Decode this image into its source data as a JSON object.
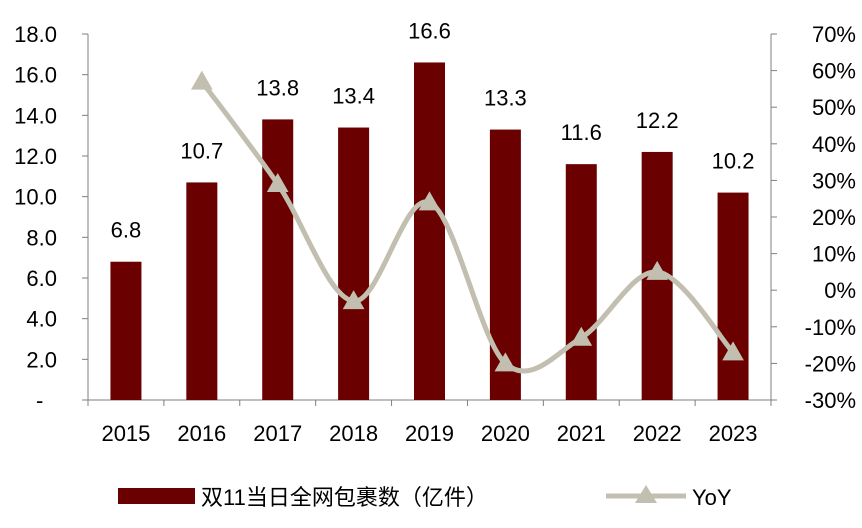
{
  "colors": {
    "bar": "#6b0000",
    "line": "#c2bfb0",
    "axis": "#7f7f7f",
    "text": "#000000"
  },
  "chart_data": {
    "type": "bar",
    "categories": [
      "2015",
      "2016",
      "2017",
      "2018",
      "2019",
      "2020",
      "2021",
      "2022",
      "2023"
    ],
    "series": [
      {
        "name": "双11当日全网包裹数（亿件）",
        "type": "bar",
        "axis": "left",
        "values": [
          6.8,
          10.7,
          13.8,
          13.4,
          16.6,
          13.3,
          11.6,
          12.2,
          10.2
        ],
        "labels": [
          "6.8",
          "10.7",
          "13.8",
          "13.4",
          "16.6",
          "13.3",
          "11.6",
          "12.2",
          "10.2"
        ]
      },
      {
        "name": "YoY",
        "type": "line",
        "axis": "right",
        "marker": "triangle",
        "smooth": true,
        "values": [
          null,
          0.57,
          0.29,
          -0.03,
          0.24,
          -0.2,
          -0.13,
          0.05,
          -0.17
        ]
      }
    ],
    "y_left": {
      "range": [
        0,
        18
      ],
      "ticks": [
        0,
        2,
        4,
        6,
        8,
        10,
        12,
        14,
        16,
        18
      ],
      "tick_labels": [
        "-",
        "2.0",
        "4.0",
        "6.0",
        "8.0",
        "10.0",
        "12.0",
        "14.0",
        "16.0",
        "18.0"
      ]
    },
    "y_right": {
      "range": [
        -0.3,
        0.7
      ],
      "ticks": [
        -0.3,
        -0.2,
        -0.1,
        0,
        0.1,
        0.2,
        0.3,
        0.4,
        0.5,
        0.6,
        0.7
      ],
      "tick_labels": [
        "-30%",
        "-20%",
        "-10%",
        "0%",
        "10%",
        "20%",
        "30%",
        "40%",
        "50%",
        "60%",
        "70%"
      ]
    },
    "grid": false,
    "legend": "bottom"
  }
}
